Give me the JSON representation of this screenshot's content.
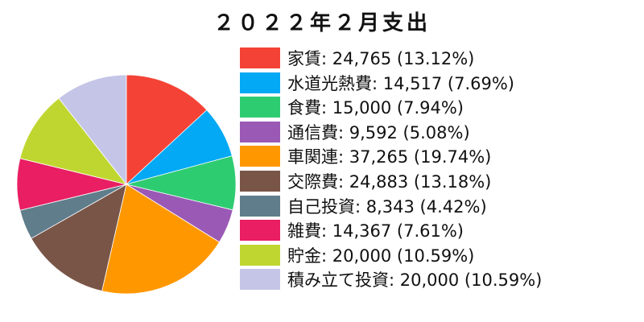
{
  "chart_data": {
    "type": "pie",
    "title": "２０２２年２月支出",
    "start_angle": "top",
    "direction": "clockwise",
    "legend_placement": "right",
    "slices": [
      {
        "label": "家賃",
        "value": 24765,
        "value_text": "24,765",
        "percent_text": "13.12%",
        "legend_text": "家賃: 24,765 (13.12%)",
        "color": "#f44336"
      },
      {
        "label": "水道光熱費",
        "value": 14517,
        "value_text": "14,517",
        "percent_text": "7.69%",
        "legend_text": "水道光熱費: 14,517 (7.69%)",
        "color": "#03a9f4"
      },
      {
        "label": "食費",
        "value": 15000,
        "value_text": "15,000",
        "percent_text": "7.94%",
        "legend_text": "食費: 15,000 (7.94%)",
        "color": "#2ecc71"
      },
      {
        "label": "通信費",
        "value": 9592,
        "value_text": "9,592",
        "percent_text": "5.08%",
        "legend_text": "通信費: 9,592 (5.08%)",
        "color": "#9b59b6"
      },
      {
        "label": "車関連",
        "value": 37265,
        "value_text": "37,265",
        "percent_text": "19.74%",
        "legend_text": "車関連: 37,265 (19.74%)",
        "color": "#ff9800"
      },
      {
        "label": "交際費",
        "value": 24883,
        "value_text": "24,883",
        "percent_text": "13.18%",
        "legend_text": "交際費: 24,883 (13.18%)",
        "color": "#795548"
      },
      {
        "label": "自己投資",
        "value": 8343,
        "value_text": "8,343",
        "percent_text": "4.42%",
        "legend_text": "自己投資: 8,343 (4.42%)",
        "color": "#607d8b"
      },
      {
        "label": "雑費",
        "value": 14367,
        "value_text": "14,367",
        "percent_text": "7.61%",
        "legend_text": "雑費: 14,367 (7.61%)",
        "color": "#e91e63"
      },
      {
        "label": "貯金",
        "value": 20000,
        "value_text": "20,000",
        "percent_text": "10.59%",
        "legend_text": "貯金: 20,000 (10.59%)",
        "color": "#c0d630"
      },
      {
        "label": "積み立て投資",
        "value": 20000,
        "value_text": "20,000",
        "percent_text": "10.59%",
        "legend_text": "積み立て投資: 20,000 (10.59%)",
        "color": "#c5c5e8"
      }
    ]
  }
}
